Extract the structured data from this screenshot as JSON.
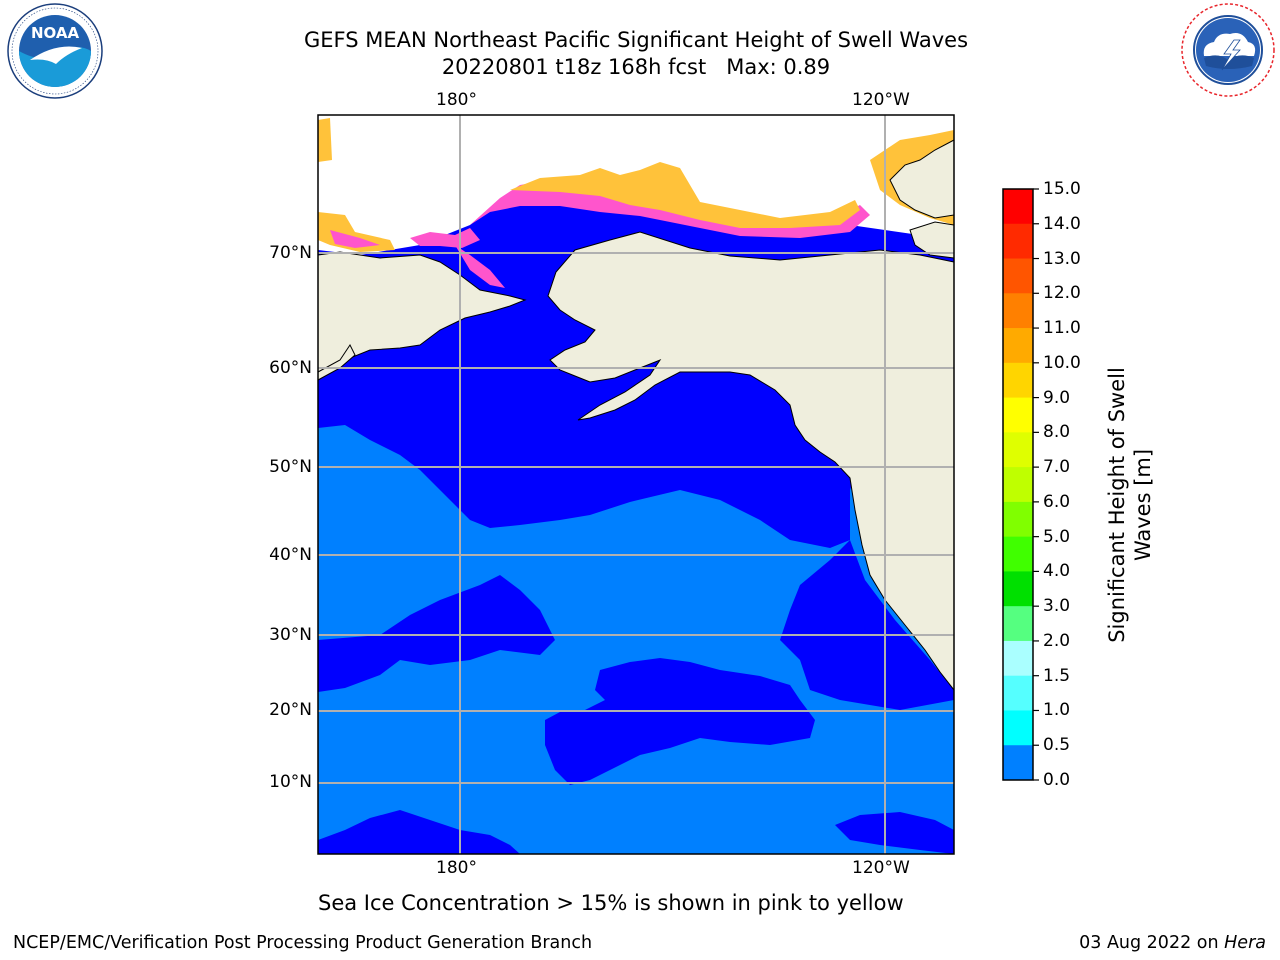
{
  "title": {
    "line1": "GEFS MEAN Northeast Pacific Significant Height of Swell Waves",
    "line2": "20220801 t18z 168h fcst   Max: 0.89"
  },
  "logos": {
    "left": {
      "icon": "noaa-logo-icon",
      "text": "NOAA",
      "ring_text": "NATIONAL OCEANIC AND ATMOSPHERIC ADMINISTRATION · U.S. DEPARTMENT OF COMMERCE"
    },
    "right": {
      "icon": "nws-logo-icon",
      "ring_text": "NATIONAL WEATHER SERVICE"
    }
  },
  "map": {
    "lon_labels": [
      "180°",
      "120°W"
    ],
    "lat_labels": [
      "70°N",
      "60°N",
      "50°N",
      "40°N",
      "30°N",
      "20°N",
      "10°N"
    ],
    "grid": true,
    "colors": {
      "land": "#efeedd",
      "ocean_low": "#0000ff",
      "ocean_mid": "#0080ff",
      "ice_pink": "#ff55cc",
      "ice_yellow": "#ffc23a",
      "grid": "#b0b0b0"
    }
  },
  "colorbar": {
    "label_line1": "Significant Height of Swell",
    "label_line2": "Waves [m]",
    "ticks": [
      "15.0",
      "14.0",
      "13.0",
      "12.0",
      "11.0",
      "10.0",
      "9.0",
      "8.0",
      "7.0",
      "6.0",
      "5.0",
      "4.0",
      "3.0",
      "2.0",
      "1.5",
      "1.0",
      "0.5",
      "0.0"
    ],
    "colors": [
      "#ff0000",
      "#ff2a00",
      "#ff5500",
      "#ff8000",
      "#ffaa00",
      "#ffd500",
      "#ffff00",
      "#dfff00",
      "#bfff00",
      "#80ff00",
      "#40ff00",
      "#00e000",
      "#55ff80",
      "#aaffff",
      "#55ffff",
      "#00ffff",
      "#0080ff",
      "#0000ff"
    ]
  },
  "caption": "Sea Ice Concentration > 15% is shown in pink to yellow",
  "footer": {
    "left": "NCEP/EMC/Verification Post Processing Product Generation Branch",
    "right_date": "03 Aug 2022 on ",
    "right_host": "Hera"
  }
}
